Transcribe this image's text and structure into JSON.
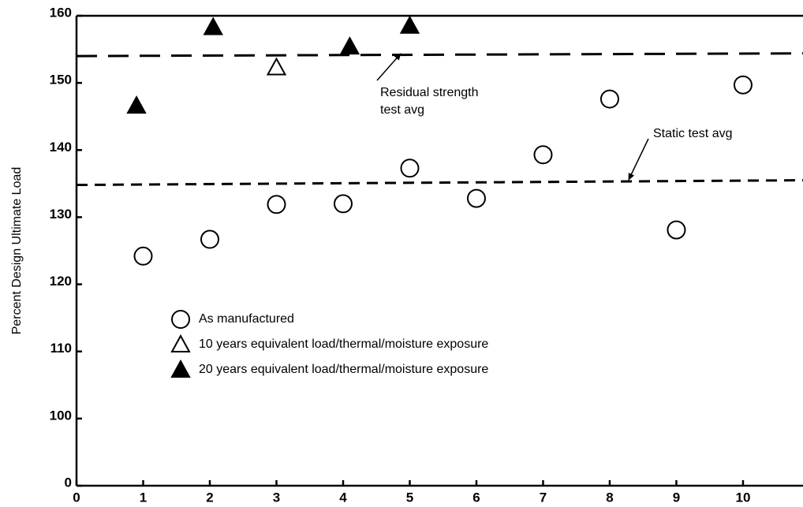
{
  "chart_data": {
    "type": "scatter",
    "y_label": "Percent Design Ultimate Load",
    "xlim": [
      0,
      10.9
    ],
    "xticks": [
      0,
      1,
      2,
      3,
      4,
      5,
      6,
      7,
      8,
      9,
      10
    ],
    "ylim": [
      0,
      160
    ],
    "yticks": [
      0,
      100,
      110,
      120,
      130,
      140,
      150,
      160
    ],
    "series": [
      {
        "name": "As manufactured",
        "marker": "circle-open",
        "color": "#000000",
        "x": [
          1,
          2,
          3,
          4,
          5,
          6,
          7,
          8,
          9,
          10
        ],
        "values": [
          124.2,
          126.7,
          131.9,
          132,
          137.3,
          132.8,
          139.3,
          147.6,
          128.1,
          149.7
        ]
      },
      {
        "name": "10 years equivalent load/thermal/moisture exposure",
        "marker": "triangle-open",
        "color": "#000000",
        "x": [
          3
        ],
        "values": [
          152.3
        ]
      },
      {
        "name": "20 years equivalent load/thermal/moisture exposure",
        "marker": "triangle-filled",
        "color": "#000000",
        "x": [
          0.9,
          2.05,
          4.1,
          5
        ],
        "values": [
          146.6,
          158.3,
          155.4,
          158.5
        ]
      }
    ],
    "reference_lines": [
      {
        "label_lines": [
          "Residual strength",
          "test avg"
        ],
        "dash": "long",
        "x": [
          0,
          10.9
        ],
        "values": [
          154,
          154.4
        ]
      },
      {
        "label_lines": [
          "Static test avg"
        ],
        "dash": "short",
        "x": [
          0,
          10.9
        ],
        "values": [
          134.8,
          135.5
        ]
      }
    ]
  }
}
